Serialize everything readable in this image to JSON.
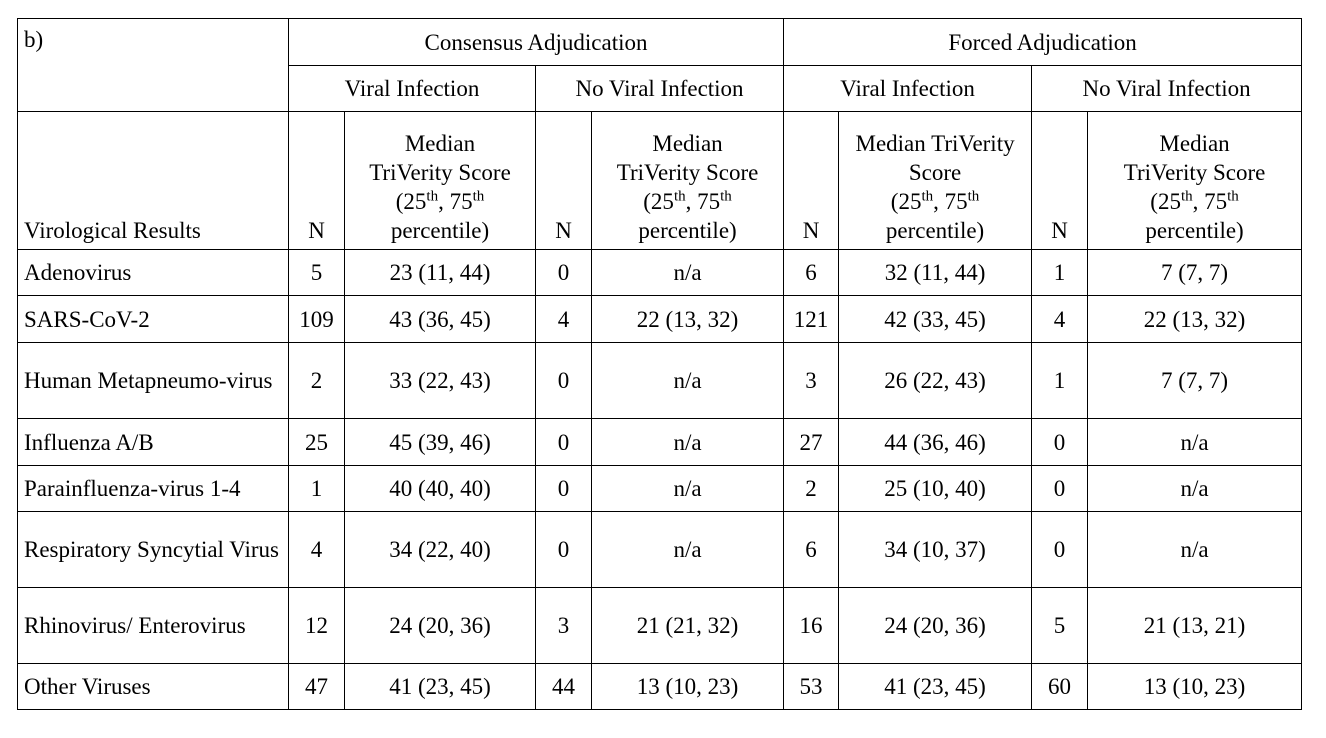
{
  "panel_label": "b)",
  "groups": [
    "Consensus Adjudication",
    "Forced Adjudication"
  ],
  "subgroups": [
    "Viral Infection",
    "No Viral Infection",
    "Viral Infection",
    "No Viral Infection"
  ],
  "row_header": "Virological Results",
  "n_label": "N",
  "score_headers": [
    {
      "a": "Median",
      "b": "TriVerity Score",
      "c1": "(25",
      "s1": "th",
      "c2": ", 75",
      "s2": "th",
      "d": "percentile)"
    },
    {
      "a": "Median",
      "b": "TriVerity Score",
      "c1": "(25",
      "s1": "th",
      "c2": ", 75",
      "s2": "th",
      "d": "percentile)"
    },
    {
      "a": "Median TriVerity",
      "b": "Score",
      "c1": "(25",
      "s1": "th",
      "c2": ", 75",
      "s2": "th",
      "d": "percentile)"
    },
    {
      "a": "Median",
      "b": "TriVerity Score",
      "c1": "(25",
      "s1": "th",
      "c2": ", 75",
      "s2": "th",
      "d": "percentile)"
    }
  ],
  "rows": [
    {
      "label": "Adenovirus",
      "cells": [
        "5",
        "23 (11, 44)",
        "0",
        "n/a",
        "6",
        "32 (11, 44)",
        "1",
        "7 (7, 7)"
      ]
    },
    {
      "label": "SARS-CoV-2",
      "cells": [
        "109",
        "43 (36, 45)",
        "4",
        "22 (13, 32)",
        "121",
        "42 (33, 45)",
        "4",
        "22 (13, 32)"
      ]
    },
    {
      "label": "Human Metapneumo-virus",
      "cells": [
        "2",
        "33 (22, 43)",
        "0",
        "n/a",
        "3",
        "26 (22, 43)",
        "1",
        "7 (7, 7)"
      ]
    },
    {
      "label": "Influenza A/B",
      "cells": [
        "25",
        "45 (39, 46)",
        "0",
        "n/a",
        "27",
        "44 (36, 46)",
        "0",
        "n/a"
      ]
    },
    {
      "label": "Parainfluenza-virus 1-4",
      "cells": [
        "1",
        "40 (40, 40)",
        "0",
        "n/a",
        "2",
        "25 (10, 40)",
        "0",
        "n/a"
      ]
    },
    {
      "label": "Respiratory Syncytial Virus",
      "cells": [
        "4",
        "34 (22, 40)",
        "0",
        "n/a",
        "6",
        "34 (10, 37)",
        "0",
        "n/a"
      ]
    },
    {
      "label": "Rhinovirus/ Enterovirus",
      "cells": [
        "12",
        "24 (20, 36)",
        "3",
        "21 (21, 32)",
        "16",
        "24 (20, 36)",
        "5",
        "21 (13, 21)"
      ]
    },
    {
      "label": "Other Viruses",
      "cells": [
        "47",
        "41 (23, 45)",
        "44",
        "13 (10, 23)",
        "53",
        "41 (23, 45)",
        "60",
        "13 (10, 23)"
      ]
    }
  ]
}
